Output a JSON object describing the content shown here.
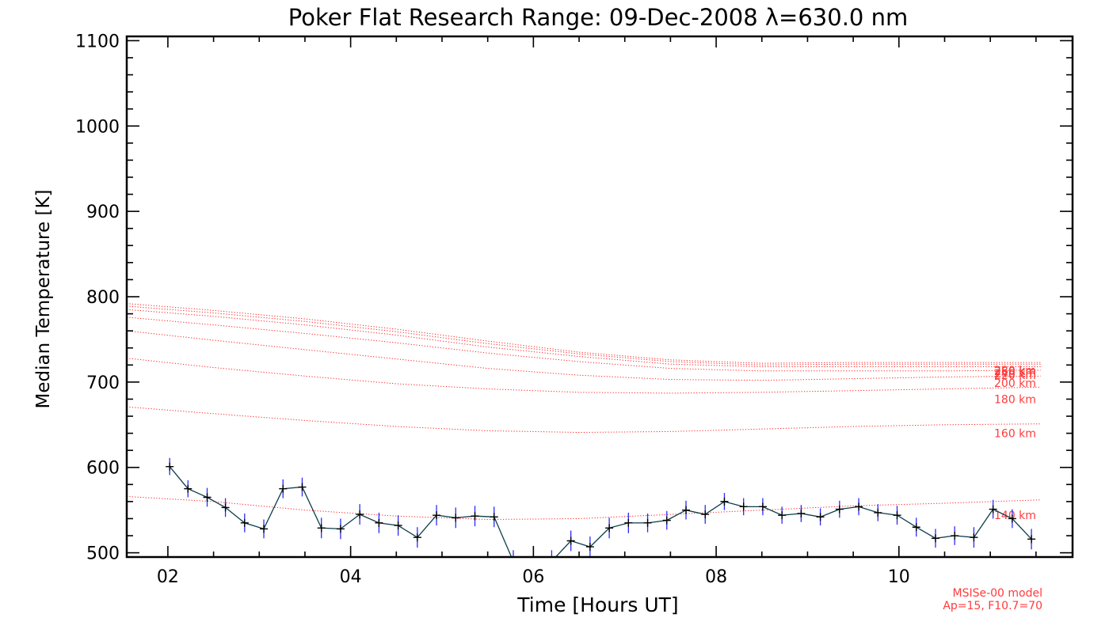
{
  "chart_data": {
    "type": "line",
    "title": "Poker Flat Research Range: 09-Dec-2008 λ=630.0 nm",
    "xlabel": "Time [Hours UT]",
    "ylabel": "Median Temperature [K]",
    "xlim": [
      1.55,
      11.9
    ],
    "ylim": [
      495,
      1105
    ],
    "xticks": [
      2,
      4,
      6,
      8,
      10
    ],
    "xtick_labels": [
      "02",
      "04",
      "06",
      "08",
      "10"
    ],
    "yticks": [
      500,
      600,
      700,
      800,
      900,
      1000,
      1100
    ],
    "ytick_labels": [
      "500",
      "600",
      "700",
      "800",
      "900",
      "1000",
      "1100"
    ],
    "grid": false,
    "colors": {
      "measured_line": "#0b3d4c",
      "error_bar": "#2a2aff",
      "model": "#ff2020",
      "model_label": "#ff3b3b"
    },
    "measured": {
      "x": [
        2.02,
        2.22,
        2.43,
        2.63,
        2.84,
        3.05,
        3.26,
        3.47,
        3.68,
        3.89,
        4.1,
        4.31,
        4.52,
        4.73,
        4.94,
        5.15,
        5.36,
        5.57,
        5.78,
        5.99,
        6.2,
        6.41,
        6.62,
        6.83,
        7.04,
        7.25,
        7.46,
        7.67,
        7.88,
        8.09,
        8.3,
        8.51,
        8.72,
        8.93,
        9.14,
        9.35,
        9.56,
        9.77,
        9.98,
        10.19,
        10.4,
        10.61,
        10.82,
        11.03,
        11.24,
        11.45
      ],
      "y": [
        601,
        575,
        565,
        553,
        535,
        528,
        575,
        577,
        529,
        528,
        545,
        535,
        532,
        518,
        544,
        541,
        543,
        542,
        490,
        478,
        490,
        514,
        507,
        529,
        535,
        535,
        538,
        550,
        545,
        560,
        554,
        554,
        544,
        546,
        542,
        551,
        554,
        547,
        544,
        530,
        517,
        520,
        518,
        551,
        540,
        516
      ],
      "err": [
        10,
        10,
        11,
        11,
        11,
        11,
        11,
        11,
        12,
        12,
        12,
        12,
        12,
        12,
        12,
        12,
        12,
        12,
        13,
        13,
        13,
        12,
        12,
        12,
        12,
        11,
        11,
        11,
        11,
        10,
        10,
        10,
        10,
        10,
        10,
        10,
        10,
        10,
        11,
        11,
        11,
        11,
        12,
        11,
        11,
        12
      ]
    },
    "model": {
      "x": [
        1.55,
        2.5,
        3.5,
        4.5,
        5.5,
        6.5,
        7.5,
        8.5,
        9.5,
        10.5,
        11.55
      ],
      "series": [
        {
          "name": "140 km",
          "values": [
            566,
            560,
            550,
            543,
            539,
            540,
            545,
            550,
            555,
            558,
            562
          ]
        },
        {
          "name": "160 km",
          "values": [
            671,
            663,
            655,
            648,
            643,
            641,
            642,
            645,
            648,
            650,
            651
          ]
        },
        {
          "name": "180 km",
          "values": [
            728,
            717,
            707,
            698,
            692,
            688,
            687,
            688,
            690,
            692,
            694
          ]
        },
        {
          "name": "200 km",
          "values": [
            760,
            749,
            738,
            727,
            716,
            708,
            703,
            702,
            704,
            706,
            707
          ]
        },
        {
          "name": "220 km",
          "values": [
            776,
            767,
            757,
            746,
            734,
            724,
            716,
            713,
            713,
            713,
            714
          ]
        },
        {
          "name": "240 km",
          "values": [
            785,
            777,
            767,
            755,
            741,
            730,
            721,
            718,
            718,
            718,
            718
          ]
        },
        {
          "name": "260 km",
          "values": [
            789,
            781,
            771,
            759,
            745,
            733,
            724,
            720,
            721,
            721,
            721
          ]
        },
        {
          "name": "280 km",
          "values": [
            792,
            784,
            774,
            762,
            748,
            735,
            726,
            722,
            723,
            723,
            723
          ]
        }
      ],
      "labels": [
        {
          "text": "280 km",
          "y": 714
        },
        {
          "text": "260 km",
          "y": 713
        },
        {
          "text": "240 km",
          "y": 710
        },
        {
          "text": "220 km",
          "y": 708
        },
        {
          "text": "200 km",
          "y": 699
        },
        {
          "text": "180 km",
          "y": 680
        },
        {
          "text": "160 km",
          "y": 640
        },
        {
          "text": "140 km",
          "y": 544
        }
      ]
    },
    "annotation": [
      "MSISe-00 model",
      "Ap=15, F10.7=70"
    ]
  }
}
